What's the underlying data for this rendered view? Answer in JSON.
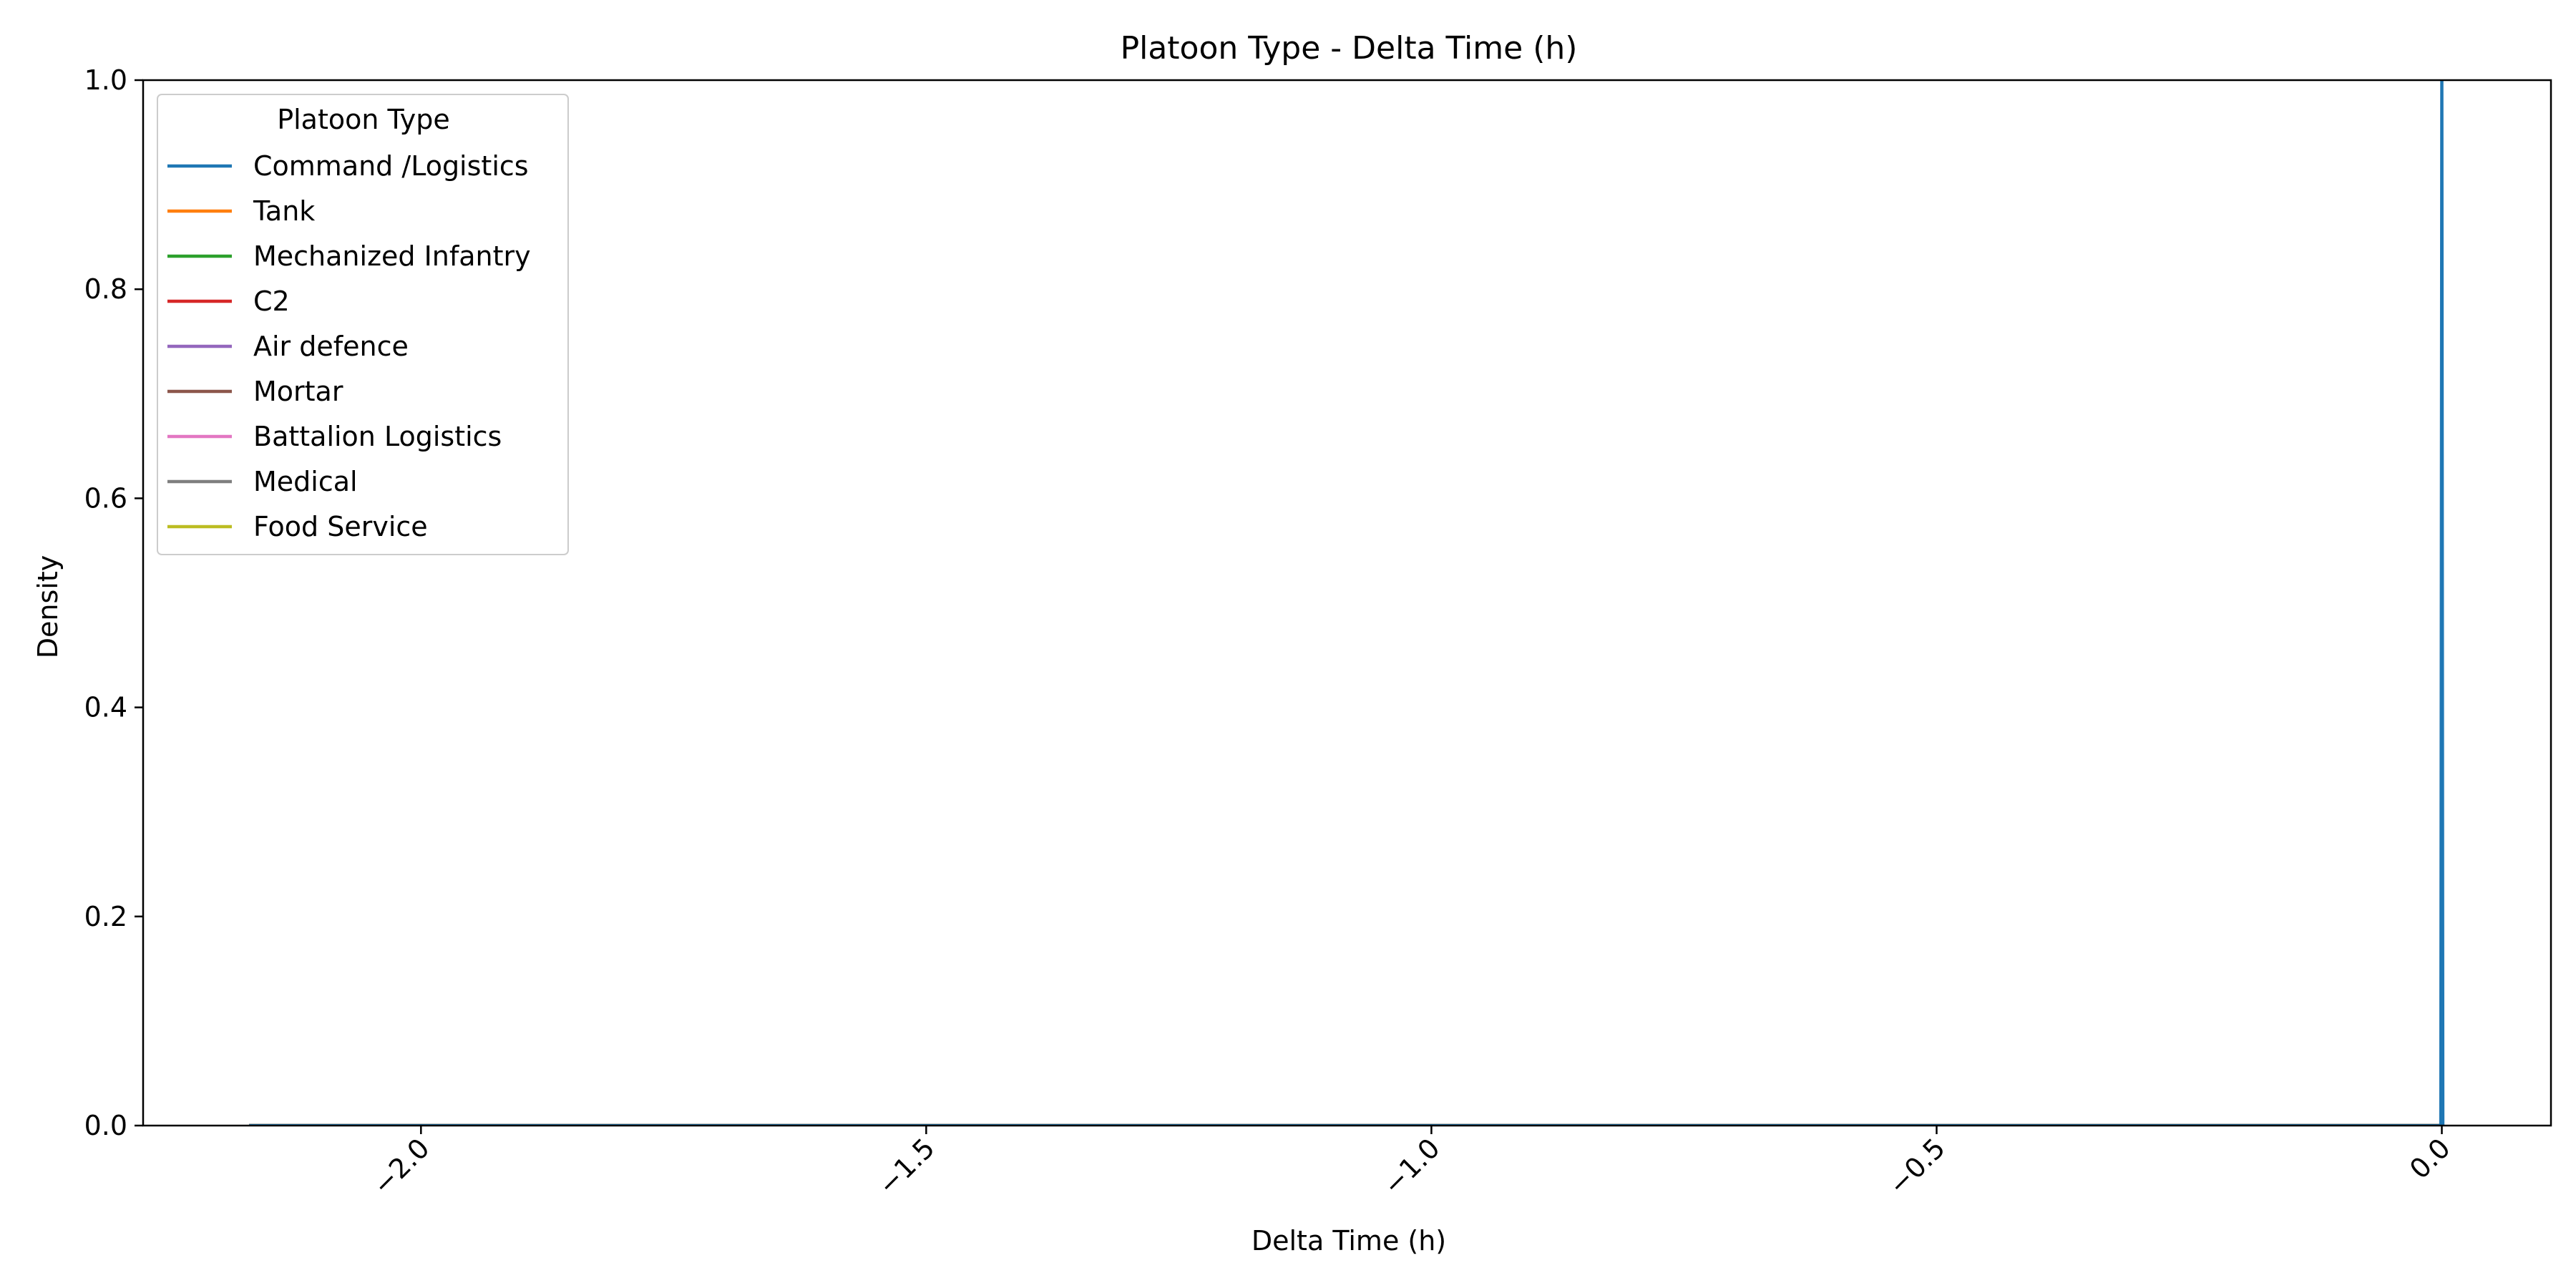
{
  "chart_data": {
    "type": "line",
    "title": "Platoon Type - Delta Time (h)",
    "xlabel": "Delta Time (h)",
    "ylabel": "Density",
    "xlim": [
      -2.275,
      0.108
    ],
    "ylim": [
      0,
      1.0
    ],
    "x_ticks": [
      -2.0,
      -1.5,
      -1.0,
      -0.5,
      0.0
    ],
    "x_tick_labels": [
      "−2.0",
      "−1.5",
      "−1.0",
      "−0.5",
      "0.0"
    ],
    "y_ticks": [
      0.0,
      0.2,
      0.4,
      0.6,
      0.8,
      1.0
    ],
    "y_tick_labels": [
      "0.0",
      "0.2",
      "0.4",
      "0.6",
      "0.8",
      "1.0"
    ],
    "grid": false,
    "legend": {
      "title": "Platoon Type",
      "placement": "top-left"
    },
    "series": [
      {
        "name": "Command /Logistics",
        "color": "#1f77b4",
        "x": [
          -2.17,
          -0.001,
          0.0,
          0.001,
          0.0
        ],
        "y": [
          0.0,
          0.0,
          1.0,
          0.0,
          0.0
        ]
      },
      {
        "name": "Tank",
        "color": "#ff7f0e",
        "x": [
          -2.17,
          0.0
        ],
        "y": [
          0.0,
          0.0
        ]
      },
      {
        "name": "Mechanized Infantry",
        "color": "#2ca02c",
        "x": [
          -2.17,
          0.0
        ],
        "y": [
          0.0,
          0.0
        ]
      },
      {
        "name": "C2",
        "color": "#d62728",
        "x": [
          -2.17,
          0.0
        ],
        "y": [
          0.0,
          0.0
        ]
      },
      {
        "name": "Air defence",
        "color": "#9467bd",
        "x": [
          -2.17,
          0.0
        ],
        "y": [
          0.0,
          0.0
        ]
      },
      {
        "name": "Mortar",
        "color": "#8c564b",
        "x": [
          -2.17,
          0.0
        ],
        "y": [
          0.0,
          0.0
        ]
      },
      {
        "name": "Battalion Logistics",
        "color": "#e377c2",
        "x": [
          -2.17,
          0.0
        ],
        "y": [
          0.0,
          0.0
        ]
      },
      {
        "name": "Medical",
        "color": "#7f7f7f",
        "x": [
          -2.17,
          0.0
        ],
        "y": [
          0.0,
          0.0
        ]
      },
      {
        "name": "Food Service",
        "color": "#bcbd22",
        "x": [
          -2.17,
          0.0
        ],
        "y": [
          0.0,
          0.0
        ]
      }
    ]
  }
}
